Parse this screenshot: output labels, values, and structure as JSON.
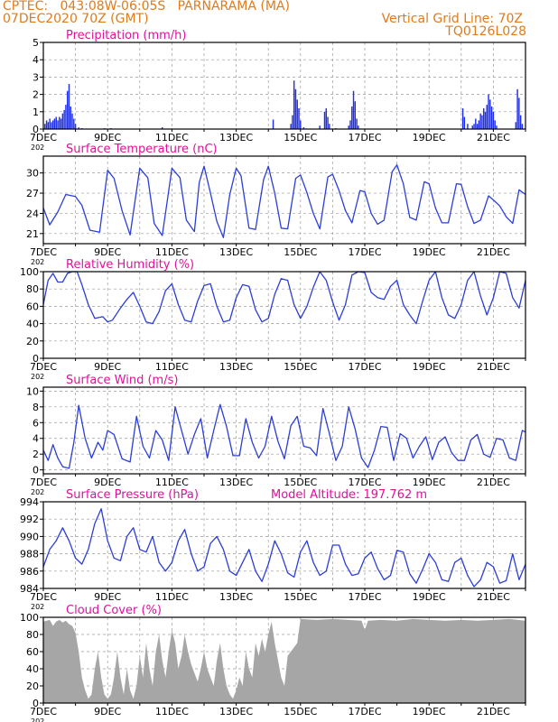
{
  "header": {
    "line1_left": "CPTEC:   043:08W-06:05S   PARNARAMA (MA)",
    "line2_left": "07DEC2020 70Z (GMT)",
    "line1_right": "Vertical Grid Line: 70Z",
    "line2_right": "TQ0126L028"
  },
  "colors": {
    "header": "#e07b1c",
    "title": "#e0119a",
    "line": "#2c3ed6",
    "bar": "#1f2ee8",
    "cloud": "#a6a6a6",
    "grid": "#9a9a9a"
  },
  "x_ticks": [
    "7DEC",
    "9DEC",
    "11DEC",
    "13DEC",
    "15DEC",
    "17DEC",
    "19DEC",
    "21DEC"
  ],
  "x_year": "202",
  "chart_data": [
    {
      "type": "bar",
      "title": "Precipitation (mm/h)",
      "ylim": [
        0,
        5
      ],
      "yticks": [
        0,
        1,
        2,
        3,
        4,
        5
      ],
      "x_day_range": [
        7,
        22
      ],
      "points": [
        [
          7.05,
          0.3
        ],
        [
          7.1,
          0.5
        ],
        [
          7.15,
          0.4
        ],
        [
          7.2,
          0.6
        ],
        [
          7.25,
          0.4
        ],
        [
          7.3,
          0.5
        ],
        [
          7.35,
          0.6
        ],
        [
          7.4,
          0.7
        ],
        [
          7.45,
          0.5
        ],
        [
          7.5,
          0.7
        ],
        [
          7.55,
          0.6
        ],
        [
          7.6,
          0.9
        ],
        [
          7.65,
          1.1
        ],
        [
          7.7,
          1.4
        ],
        [
          7.75,
          2.2
        ],
        [
          7.8,
          2.6
        ],
        [
          7.85,
          1.3
        ],
        [
          7.9,
          0.9
        ],
        [
          7.95,
          0.6
        ],
        [
          8.0,
          0.3
        ],
        [
          8.1,
          0.1
        ],
        [
          8.2,
          0.05
        ],
        [
          8.9,
          0.05
        ],
        [
          9.1,
          0.05
        ],
        [
          10.7,
          0.1
        ],
        [
          14.15,
          0.55
        ],
        [
          14.7,
          0.3
        ],
        [
          14.75,
          0.8
        ],
        [
          14.8,
          2.8
        ],
        [
          14.85,
          2.3
        ],
        [
          14.9,
          1.7
        ],
        [
          14.95,
          1.2
        ],
        [
          15.0,
          0.5
        ],
        [
          15.1,
          0.1
        ],
        [
          15.6,
          0.2
        ],
        [
          15.75,
          1.0
        ],
        [
          15.8,
          1.2
        ],
        [
          15.85,
          0.7
        ],
        [
          15.9,
          0.3
        ],
        [
          16.1,
          0.05
        ],
        [
          16.5,
          0.2
        ],
        [
          16.55,
          0.5
        ],
        [
          16.6,
          1.3
        ],
        [
          16.65,
          2.2
        ],
        [
          16.7,
          1.6
        ],
        [
          16.75,
          0.6
        ],
        [
          16.8,
          0.2
        ],
        [
          20.05,
          1.2
        ],
        [
          20.1,
          0.7
        ],
        [
          20.2,
          0.3
        ],
        [
          20.35,
          0.2
        ],
        [
          20.4,
          0.3
        ],
        [
          20.45,
          0.6
        ],
        [
          20.5,
          0.3
        ],
        [
          20.55,
          0.5
        ],
        [
          20.6,
          0.9
        ],
        [
          20.65,
          0.8
        ],
        [
          20.7,
          1.2
        ],
        [
          20.75,
          1.0
        ],
        [
          20.8,
          1.4
        ],
        [
          20.85,
          2.0
        ],
        [
          20.9,
          1.7
        ],
        [
          20.95,
          1.3
        ],
        [
          21.0,
          1.0
        ],
        [
          21.05,
          0.5
        ],
        [
          21.1,
          0.2
        ],
        [
          21.7,
          0.4
        ],
        [
          21.75,
          2.3
        ],
        [
          21.8,
          1.8
        ],
        [
          21.85,
          0.8
        ],
        [
          21.9,
          0.3
        ]
      ]
    },
    {
      "type": "line",
      "title": "Surface Temperature (nC)",
      "ylim": [
        19.5,
        32.5
      ],
      "yticks": [
        21,
        24,
        27,
        30
      ],
      "x": [
        7.0,
        7.2,
        7.45,
        7.7,
        8.0,
        8.2,
        8.45,
        8.75,
        9.0,
        9.2,
        9.45,
        9.7,
        9.85,
        10.0,
        10.25,
        10.45,
        10.7,
        10.85,
        11.0,
        11.25,
        11.45,
        11.7,
        11.85,
        12.0,
        12.2,
        12.4,
        12.6,
        12.8,
        13.0,
        13.15,
        13.4,
        13.6,
        13.85,
        14.0,
        14.2,
        14.4,
        14.6,
        14.85,
        15.0,
        15.2,
        15.4,
        15.6,
        15.85,
        16.0,
        16.2,
        16.4,
        16.6,
        16.85,
        17.0,
        17.2,
        17.4,
        17.6,
        17.85,
        18.0,
        18.2,
        18.4,
        18.6,
        18.85,
        19.0,
        19.2,
        19.4,
        19.6,
        19.85,
        20.0,
        20.2,
        20.4,
        20.6,
        20.85,
        21.0,
        21.2,
        21.4,
        21.6,
        21.8,
        22.0
      ],
      "values": [
        24.8,
        22.3,
        24.2,
        26.8,
        26.5,
        25.2,
        21.5,
        21.2,
        30.4,
        29.2,
        24.4,
        20.8,
        25.8,
        30.7,
        29.3,
        22.5,
        20.7,
        25.7,
        30.7,
        29.3,
        23.0,
        21.3,
        28.6,
        31.0,
        27.0,
        22.8,
        20.4,
        26.8,
        30.7,
        29.6,
        21.8,
        21.6,
        29.0,
        31.0,
        27.0,
        21.8,
        21.7,
        29.2,
        29.7,
        27.1,
        24.0,
        21.7,
        29.4,
        29.8,
        27.4,
        24.4,
        22.6,
        27.4,
        27.2,
        24.0,
        22.4,
        23.0,
        30.2,
        31.2,
        28.4,
        23.4,
        23.0,
        28.7,
        28.4,
        24.8,
        22.6,
        22.6,
        28.4,
        28.3,
        25.0,
        22.5,
        23.0,
        26.6,
        26.0,
        25.1,
        23.5,
        22.5,
        27.5,
        26.8
      ]
    },
    {
      "type": "line",
      "title": "Relative Humidity (%)",
      "ylim": [
        0,
        100
      ],
      "yticks": [
        0,
        20,
        40,
        60,
        80,
        100
      ],
      "x": [
        7.0,
        7.15,
        7.3,
        7.45,
        7.6,
        7.75,
        7.9,
        8.05,
        8.2,
        8.4,
        8.6,
        8.85,
        9.0,
        9.15,
        9.4,
        9.6,
        9.8,
        10.0,
        10.2,
        10.4,
        10.6,
        10.8,
        11.0,
        11.2,
        11.4,
        11.6,
        11.8,
        12.0,
        12.2,
        12.4,
        12.6,
        12.8,
        13.0,
        13.2,
        13.4,
        13.6,
        13.8,
        14.0,
        14.2,
        14.4,
        14.6,
        14.8,
        15.0,
        15.2,
        15.4,
        15.6,
        15.8,
        16.0,
        16.2,
        16.4,
        16.6,
        16.8,
        17.0,
        17.2,
        17.4,
        17.6,
        17.8,
        18.0,
        18.2,
        18.4,
        18.6,
        18.8,
        19.0,
        19.2,
        19.4,
        19.6,
        19.8,
        20.0,
        20.2,
        20.4,
        20.6,
        20.8,
        21.0,
        21.2,
        21.4,
        21.6,
        21.8,
        22.0
      ],
      "values": [
        62,
        90,
        98,
        88,
        88,
        98,
        100,
        100,
        85,
        62,
        46,
        48,
        42,
        44,
        58,
        68,
        76,
        60,
        42,
        40,
        54,
        78,
        86,
        62,
        44,
        42,
        66,
        84,
        86,
        60,
        42,
        44,
        70,
        85,
        83,
        56,
        42,
        46,
        74,
        92,
        90,
        62,
        46,
        60,
        82,
        100,
        90,
        65,
        44,
        62,
        96,
        100,
        99,
        76,
        70,
        68,
        83,
        90,
        62,
        50,
        40,
        66,
        90,
        100,
        70,
        50,
        46,
        62,
        90,
        100,
        72,
        50,
        70,
        100,
        98,
        70,
        58,
        90
      ]
    },
    {
      "type": "line",
      "title": "Surface Wind (m/s)",
      "ylim": [
        -0.5,
        10.5
      ],
      "yticks": [
        0,
        2,
        4,
        6,
        8,
        10
      ],
      "x": [
        7.0,
        7.15,
        7.3,
        7.45,
        7.6,
        7.8,
        7.95,
        8.1,
        8.3,
        8.5,
        8.7,
        8.85,
        9.0,
        9.2,
        9.45,
        9.7,
        9.9,
        10.1,
        10.3,
        10.5,
        10.7,
        10.9,
        11.1,
        11.3,
        11.5,
        11.7,
        11.9,
        12.1,
        12.3,
        12.5,
        12.7,
        12.9,
        13.1,
        13.3,
        13.5,
        13.7,
        13.9,
        14.1,
        14.3,
        14.5,
        14.7,
        14.9,
        15.1,
        15.3,
        15.5,
        15.7,
        15.9,
        16.1,
        16.3,
        16.5,
        16.7,
        16.9,
        17.1,
        17.3,
        17.5,
        17.7,
        17.9,
        18.1,
        18.3,
        18.5,
        18.7,
        18.9,
        19.1,
        19.3,
        19.5,
        19.7,
        19.9,
        20.1,
        20.3,
        20.5,
        20.7,
        20.9,
        21.1,
        21.3,
        21.5,
        21.7,
        21.9,
        22.0
      ],
      "values": [
        2.5,
        1.2,
        3.2,
        1.5,
        0.4,
        0.2,
        3.5,
        8.2,
        4.0,
        1.5,
        3.5,
        2.5,
        5.0,
        4.5,
        1.4,
        1.0,
        6.8,
        3.0,
        1.5,
        5.0,
        3.8,
        1.2,
        8.0,
        5.0,
        2.0,
        4.5,
        6.5,
        1.5,
        5.0,
        8.3,
        5.5,
        1.8,
        1.8,
        6.5,
        3.5,
        1.5,
        3.0,
        6.8,
        3.6,
        1.4,
        5.6,
        6.8,
        3.0,
        2.8,
        1.8,
        7.8,
        4.6,
        1.2,
        3.0,
        8.0,
        5.2,
        1.5,
        0.3,
        2.5,
        5.5,
        5.4,
        1.2,
        4.6,
        4.0,
        1.5,
        3.0,
        4.2,
        1.3,
        3.5,
        4.2,
        2.2,
        1.2,
        1.2,
        3.8,
        4.5,
        2.0,
        1.6,
        4.0,
        3.8,
        1.5,
        1.2,
        5.0,
        4.8
      ]
    },
    {
      "type": "line",
      "title": "Surface Pressure (hPa)",
      "annotation": "Model Altitude: 197.762  m",
      "ylim": [
        984,
        994
      ],
      "yticks": [
        984,
        986,
        988,
        990,
        992,
        994
      ],
      "x": [
        7.0,
        7.2,
        7.4,
        7.6,
        7.8,
        8.0,
        8.2,
        8.4,
        8.6,
        8.8,
        9.0,
        9.2,
        9.4,
        9.6,
        9.8,
        10.0,
        10.2,
        10.4,
        10.6,
        10.8,
        11.0,
        11.2,
        11.4,
        11.6,
        11.8,
        12.0,
        12.2,
        12.4,
        12.6,
        12.8,
        13.0,
        13.2,
        13.4,
        13.6,
        13.8,
        14.0,
        14.2,
        14.4,
        14.6,
        14.8,
        15.0,
        15.2,
        15.4,
        15.6,
        15.8,
        16.0,
        16.2,
        16.4,
        16.6,
        16.8,
        17.0,
        17.2,
        17.4,
        17.6,
        17.8,
        18.0,
        18.2,
        18.4,
        18.6,
        18.8,
        19.0,
        19.2,
        19.4,
        19.6,
        19.8,
        20.0,
        20.2,
        20.4,
        20.6,
        20.8,
        21.0,
        21.2,
        21.4,
        21.6,
        21.8,
        22.0
      ],
      "values": [
        986.5,
        988.5,
        989.5,
        991.0,
        989.5,
        987.5,
        986.8,
        988.5,
        991.5,
        993.2,
        989.5,
        987.5,
        987.2,
        990.0,
        991.0,
        988.5,
        988.2,
        990.0,
        987.0,
        986.0,
        987.0,
        989.5,
        990.8,
        988.0,
        986.0,
        986.5,
        989.2,
        990.0,
        988.5,
        986.0,
        985.5,
        987.0,
        988.5,
        986.0,
        984.8,
        986.8,
        989.5,
        988.0,
        985.8,
        985.3,
        988.2,
        989.5,
        987.0,
        985.5,
        986.0,
        989.0,
        989.0,
        986.8,
        985.5,
        985.7,
        987.5,
        988.2,
        986.3,
        985.0,
        985.5,
        988.4,
        988.2,
        985.7,
        984.6,
        986.2,
        988.0,
        987.0,
        985.0,
        984.8,
        987.0,
        987.5,
        985.5,
        984.2,
        985.0,
        987.0,
        986.5,
        984.6,
        984.9,
        988.0,
        985.0,
        986.8
      ]
    },
    {
      "type": "area",
      "title": "Cloud Cover (%)",
      "ylim": [
        0,
        100
      ],
      "yticks": [
        0,
        20,
        40,
        60,
        80,
        100
      ],
      "x": [
        7.0,
        7.1,
        7.2,
        7.3,
        7.4,
        7.5,
        7.6,
        7.7,
        7.8,
        7.9,
        8.0,
        8.1,
        8.2,
        8.3,
        8.4,
        8.5,
        8.6,
        8.7,
        8.8,
        8.9,
        9.0,
        9.1,
        9.2,
        9.3,
        9.4,
        9.5,
        9.6,
        9.7,
        9.8,
        9.9,
        10.0,
        10.1,
        10.2,
        10.3,
        10.4,
        10.5,
        10.6,
        10.7,
        10.8,
        10.9,
        11.0,
        11.1,
        11.2,
        11.3,
        11.4,
        11.5,
        11.6,
        11.7,
        11.8,
        11.9,
        12.0,
        12.1,
        12.2,
        12.3,
        12.4,
        12.5,
        12.6,
        12.7,
        12.8,
        12.9,
        13.0,
        13.1,
        13.2,
        13.3,
        13.4,
        13.5,
        13.6,
        13.7,
        13.8,
        13.9,
        14.0,
        14.1,
        14.2,
        14.3,
        14.4,
        14.5,
        14.6,
        14.7,
        14.8,
        14.9,
        15.0,
        15.5,
        16.0,
        16.5,
        16.9,
        17.0,
        17.1,
        17.5,
        18.0,
        18.5,
        19.0,
        19.5,
        20.0,
        20.5,
        21.0,
        21.5,
        22.0
      ],
      "values": [
        95,
        96,
        97,
        90,
        95,
        97,
        94,
        96,
        92,
        90,
        82,
        60,
        30,
        15,
        5,
        10,
        40,
        60,
        30,
        10,
        5,
        10,
        30,
        60,
        30,
        10,
        40,
        15,
        5,
        20,
        55,
        30,
        70,
        40,
        20,
        60,
        80,
        50,
        30,
        60,
        85,
        70,
        40,
        55,
        80,
        60,
        45,
        35,
        25,
        40,
        60,
        40,
        30,
        20,
        50,
        70,
        40,
        20,
        10,
        5,
        15,
        30,
        20,
        60,
        40,
        30,
        70,
        55,
        75,
        60,
        80,
        95,
        70,
        50,
        30,
        20,
        55,
        60,
        65,
        70,
        98,
        97,
        98,
        97,
        96,
        85,
        96,
        97,
        96,
        98,
        97,
        96,
        97,
        96,
        97,
        98,
        96
      ]
    }
  ]
}
